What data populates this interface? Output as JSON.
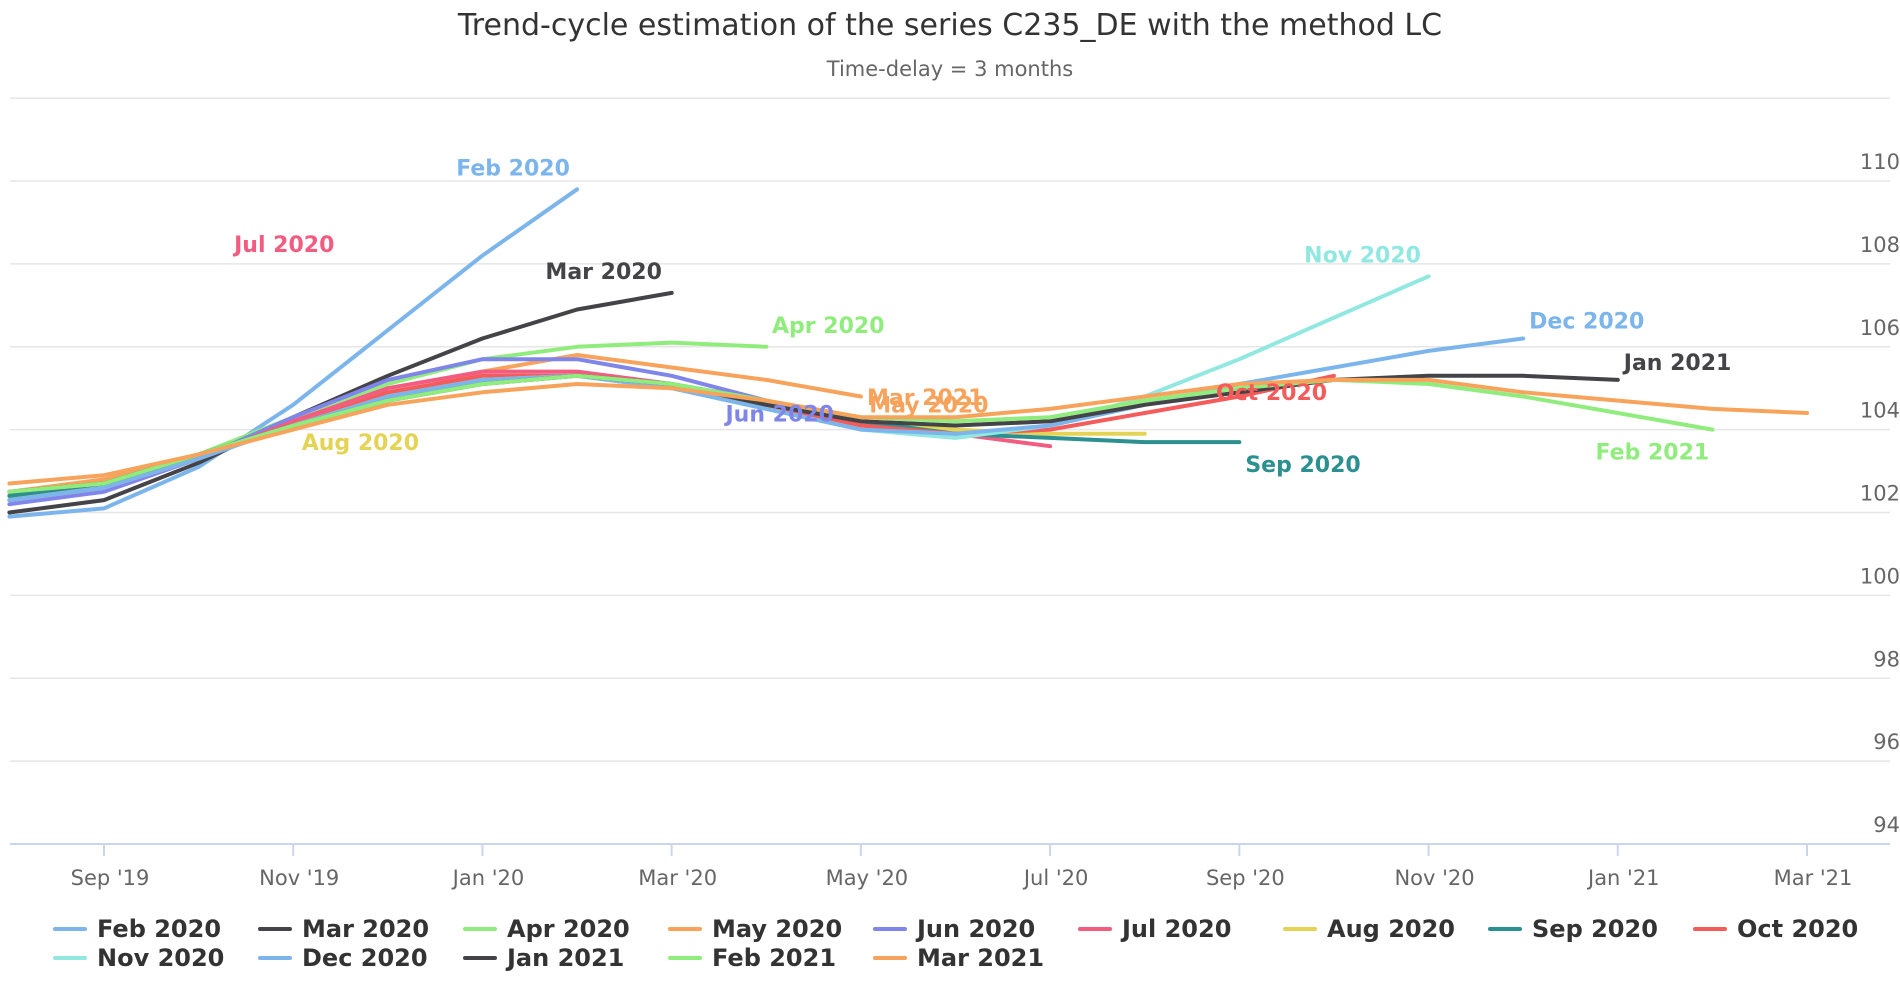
{
  "chart_data": {
    "type": "line",
    "title": "Trend-cycle estimation of the series C235_DE with the method LC",
    "subtitle": "Time-delay = 3 months",
    "x_ticks": [
      "Sep '19",
      "Nov '19",
      "Jan '20",
      "Mar '20",
      "May '20",
      "Jul '20",
      "Sep '20",
      "Nov '20",
      "Jan '21",
      "Mar '21"
    ],
    "y_ticks": [
      94,
      96,
      98,
      100,
      102,
      104,
      106,
      108,
      110
    ],
    "ylim": [
      93.7,
      111.9
    ],
    "xlim": [
      "2019-08",
      "2021-03"
    ],
    "grid": true,
    "legend_position": "bottom",
    "series": [
      {
        "name": "Feb 2020",
        "color": "#7cb5ec",
        "end_label": "Feb 2020",
        "x": [
          "2019-08",
          "2019-09",
          "2019-10",
          "2019-11",
          "2019-12",
          "2020-01",
          "2020-02"
        ],
        "y": [
          101.9,
          102.1,
          103.1,
          104.6,
          106.4,
          108.2,
          109.8
        ]
      },
      {
        "name": "Mar 2020",
        "color": "#434348",
        "end_label": "Mar 2020",
        "x": [
          "2019-08",
          "2019-09",
          "2019-10",
          "2019-11",
          "2019-12",
          "2020-01",
          "2020-02",
          "2020-03"
        ],
        "y": [
          102.0,
          102.3,
          103.2,
          104.3,
          105.3,
          106.2,
          106.9,
          107.3
        ]
      },
      {
        "name": "Apr 2020",
        "color": "#90ed7d",
        "end_label": "Apr 2020",
        "x": [
          "2019-08",
          "2019-09",
          "2019-10",
          "2019-11",
          "2019-12",
          "2020-01",
          "2020-02",
          "2020-03",
          "2020-04"
        ],
        "y": [
          102.4,
          102.7,
          103.4,
          104.3,
          105.1,
          105.7,
          106.0,
          106.1,
          106.0
        ]
      },
      {
        "name": "May 2020",
        "color": "#f7a35c",
        "end_label": "May 2020",
        "x": [
          "2019-08",
          "2019-09",
          "2019-10",
          "2019-11",
          "2019-12",
          "2020-01",
          "2020-02",
          "2020-03",
          "2020-04",
          "2020-05"
        ],
        "y": [
          102.5,
          102.8,
          103.4,
          104.1,
          104.8,
          105.4,
          105.8,
          105.5,
          105.2,
          104.8
        ]
      },
      {
        "name": "Jun 2020",
        "color": "#8085e9",
        "end_label": "Jun 2020",
        "x": [
          "2019-08",
          "2019-09",
          "2019-10",
          "2019-11",
          "2019-12",
          "2020-01",
          "2020-02",
          "2020-03",
          "2020-04",
          "2020-05",
          "2020-06"
        ],
        "y": [
          102.2,
          102.5,
          103.3,
          104.3,
          105.2,
          105.7,
          105.7,
          105.3,
          104.7,
          104.2,
          104.0
        ]
      },
      {
        "name": "Jul 2020",
        "color": "#f15c80",
        "end_label": "Jul 2020",
        "x": [
          "2019-08",
          "2019-09",
          "2019-10",
          "2019-11",
          "2019-12",
          "2020-01",
          "2020-02",
          "2020-03",
          "2020-04",
          "2020-05",
          "2020-06",
          "2020-07"
        ],
        "y": [
          102.3,
          102.6,
          103.3,
          104.2,
          105.0,
          105.4,
          105.4,
          105.1,
          104.6,
          104.1,
          103.9,
          103.6
        ]
      },
      {
        "name": "Aug 2020",
        "color": "#e4d354",
        "end_label": "Aug 2020",
        "x": [
          "2019-08",
          "2019-09",
          "2019-10",
          "2019-11",
          "2019-12",
          "2020-01",
          "2020-02",
          "2020-03",
          "2020-04",
          "2020-05",
          "2020-06",
          "2020-07",
          "2020-08"
        ],
        "y": [
          102.4,
          102.7,
          103.4,
          104.1,
          104.8,
          105.2,
          105.3,
          105.1,
          104.7,
          104.2,
          104.0,
          103.9,
          103.9
        ]
      },
      {
        "name": "Sep 2020",
        "color": "#2b908f",
        "end_label": "Sep 2020",
        "x": [
          "2019-08",
          "2019-09",
          "2019-10",
          "2019-11",
          "2019-12",
          "2020-01",
          "2020-02",
          "2020-03",
          "2020-04",
          "2020-05",
          "2020-06",
          "2020-07",
          "2020-08",
          "2020-09"
        ],
        "y": [
          102.4,
          102.7,
          103.4,
          104.1,
          104.8,
          105.2,
          105.3,
          105.1,
          104.7,
          104.2,
          103.9,
          103.8,
          103.7,
          103.7
        ]
      },
      {
        "name": "Oct 2020",
        "color": "#f45b5b",
        "end_label": "Oct 2020",
        "x": [
          "2019-08",
          "2019-09",
          "2019-10",
          "2019-11",
          "2019-12",
          "2020-01",
          "2020-02",
          "2020-03",
          "2020-04",
          "2020-05",
          "2020-06",
          "2020-07",
          "2020-08",
          "2020-09",
          "2020-10"
        ],
        "y": [
          102.3,
          102.6,
          103.3,
          104.1,
          104.9,
          105.3,
          105.3,
          105.0,
          104.6,
          104.1,
          103.9,
          104.0,
          104.4,
          104.8,
          105.3
        ]
      },
      {
        "name": "Nov 2020",
        "color": "#91e8e1",
        "end_label": "Nov 2020",
        "x": [
          "2019-08",
          "2019-09",
          "2019-10",
          "2019-11",
          "2019-12",
          "2020-01",
          "2020-02",
          "2020-03",
          "2020-04",
          "2020-05",
          "2020-06",
          "2020-07",
          "2020-08",
          "2020-09",
          "2020-10",
          "2020-11"
        ],
        "y": [
          102.3,
          102.6,
          103.3,
          104.1,
          104.8,
          105.2,
          105.3,
          105.0,
          104.5,
          104.0,
          103.8,
          104.1,
          104.8,
          105.7,
          106.7,
          107.7
        ]
      },
      {
        "name": "Dec 2020",
        "color": "#7cb5ec",
        "end_label": "Dec 2020",
        "x": [
          "2019-08",
          "2019-09",
          "2019-10",
          "2019-11",
          "2019-12",
          "2020-01",
          "2020-02",
          "2020-03",
          "2020-04",
          "2020-05",
          "2020-06",
          "2020-07",
          "2020-08",
          "2020-09",
          "2020-10",
          "2020-11",
          "2020-12"
        ],
        "y": [
          102.3,
          102.6,
          103.3,
          104.1,
          104.8,
          105.2,
          105.3,
          105.0,
          104.5,
          104.0,
          103.9,
          104.1,
          104.6,
          105.1,
          105.5,
          105.9,
          106.2
        ]
      },
      {
        "name": "Jan 2021",
        "color": "#434348",
        "end_label": "Jan 2021",
        "x": [
          "2019-08",
          "2019-09",
          "2019-10",
          "2019-11",
          "2019-12",
          "2020-01",
          "2020-02",
          "2020-03",
          "2020-04",
          "2020-05",
          "2020-06",
          "2020-07",
          "2020-08",
          "2020-09",
          "2020-10",
          "2020-11",
          "2020-12",
          "2021-01"
        ],
        "y": [
          102.5,
          102.7,
          103.4,
          104.1,
          104.7,
          105.1,
          105.3,
          105.1,
          104.6,
          104.2,
          104.1,
          104.2,
          104.6,
          104.9,
          105.2,
          105.3,
          105.3,
          105.2
        ]
      },
      {
        "name": "Feb 2021",
        "color": "#90ed7d",
        "end_label": "Feb 2021",
        "x": [
          "2019-08",
          "2019-09",
          "2019-10",
          "2019-11",
          "2019-12",
          "2020-01",
          "2020-02",
          "2020-03",
          "2020-04",
          "2020-05",
          "2020-06",
          "2020-07",
          "2020-08",
          "2020-09",
          "2020-10",
          "2020-11",
          "2020-12",
          "2021-01",
          "2021-02"
        ],
        "y": [
          102.5,
          102.7,
          103.4,
          104.1,
          104.7,
          105.1,
          105.3,
          105.1,
          104.7,
          104.3,
          104.2,
          104.3,
          104.7,
          105.0,
          105.2,
          105.1,
          104.8,
          104.4,
          104.0
        ]
      },
      {
        "name": "Mar 2021",
        "color": "#f7a35c",
        "end_label": "Mar 2021",
        "x": [
          "2019-08",
          "2019-09",
          "2019-10",
          "2019-11",
          "2019-12",
          "2020-01",
          "2020-02",
          "2020-03",
          "2020-04",
          "2020-05",
          "2020-06",
          "2020-07",
          "2020-08",
          "2020-09",
          "2020-10",
          "2020-11",
          "2020-12",
          "2021-01",
          "2021-02",
          "2021-03"
        ],
        "y": [
          102.7,
          102.9,
          103.4,
          104.0,
          104.6,
          104.9,
          105.1,
          105.0,
          104.7,
          104.3,
          104.3,
          104.5,
          104.8,
          105.1,
          105.2,
          105.2,
          104.9,
          104.7,
          104.5,
          104.4
        ]
      }
    ]
  }
}
